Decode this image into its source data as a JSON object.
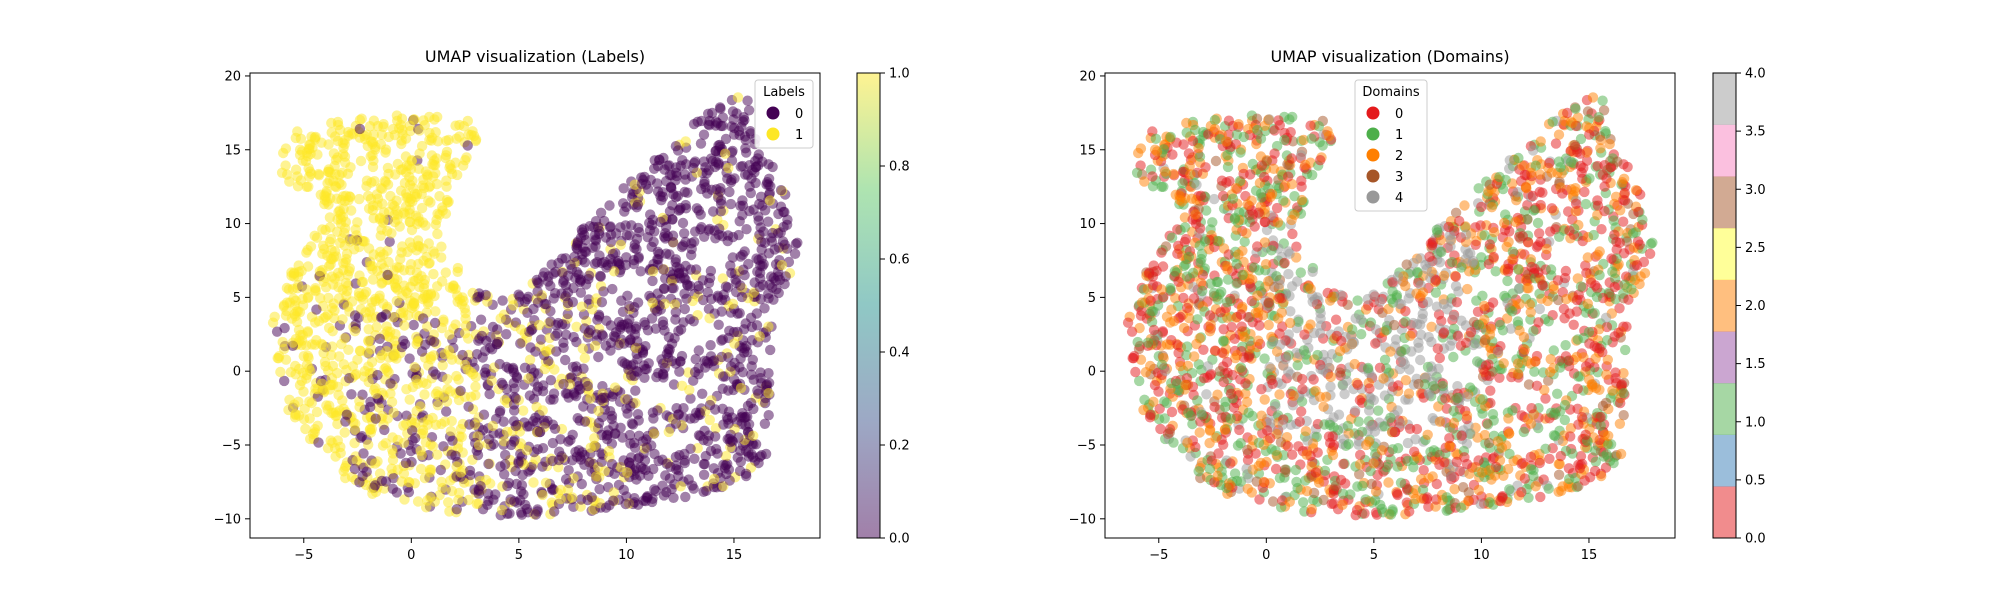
{
  "chart_data": [
    {
      "type": "scatter",
      "title": "UMAP visualization (Labels)",
      "xlabel": "",
      "ylabel": "",
      "xlim": [
        -7.5,
        19
      ],
      "ylim": [
        -11.3,
        20.2
      ],
      "xticks": [
        "−5",
        "0",
        "5",
        "10",
        "15"
      ],
      "yticks": [
        "−10",
        "−5",
        "0",
        "5",
        "10",
        "15",
        "20"
      ],
      "legend": {
        "title": "Labels",
        "position": "top-right",
        "entries": [
          "0",
          "1"
        ]
      },
      "series": [
        {
          "name": "0",
          "color": "#440154"
        },
        {
          "name": "1",
          "color": "#fde725"
        }
      ],
      "colorbar": {
        "colormap": "viridis",
        "alpha": 0.5,
        "range": [
          0.0,
          1.0
        ],
        "ticks": [
          "0.0",
          "0.2",
          "0.4",
          "0.6",
          "0.8",
          "1.0"
        ]
      },
      "notes": "Point cloud: label 1 dominates the upper-left lobe (x -6 to 3, y 5 to 17) and the left edge; label 0 dominates the right lobe (x 5 to 18, y 5 to 19) and lower-right; both mixed in the center-bottom region."
    },
    {
      "type": "scatter",
      "title": "UMAP visualization (Domains)",
      "xlabel": "",
      "ylabel": "",
      "xlim": [
        -7.5,
        19
      ],
      "ylim": [
        -11.3,
        20.2
      ],
      "xticks": [
        "−5",
        "0",
        "5",
        "10",
        "15"
      ],
      "yticks": [
        "−10",
        "−5",
        "0",
        "5",
        "10",
        "15",
        "20"
      ],
      "legend": {
        "title": "Domains",
        "position": "top-center",
        "entries": [
          "0",
          "1",
          "2",
          "3",
          "4"
        ]
      },
      "series": [
        {
          "name": "0",
          "color": "#e41a1c"
        },
        {
          "name": "1",
          "color": "#4daf4a"
        },
        {
          "name": "2",
          "color": "#ff7f00"
        },
        {
          "name": "3",
          "color": "#a65628"
        },
        {
          "name": "4",
          "color": "#999999"
        }
      ],
      "colorbar": {
        "colormap": "Set1",
        "alpha": 0.5,
        "range": [
          0.0,
          4.0
        ],
        "ticks": [
          "0.0",
          "0.5",
          "1.0",
          "1.5",
          "2.0",
          "2.5",
          "3.0",
          "3.5",
          "4.0"
        ],
        "band_colors": [
          "#e41a1c",
          "#377eb8",
          "#4daf4a",
          "#984ea3",
          "#ff7f00",
          "#ffff33",
          "#a65628",
          "#f781bf",
          "#999999"
        ]
      },
      "notes": "Domains 0,1,2 mixed across the whole shape; domain 4 (gray) concentrated in the center region (x 0 to 10, y -5 to 10)."
    }
  ]
}
